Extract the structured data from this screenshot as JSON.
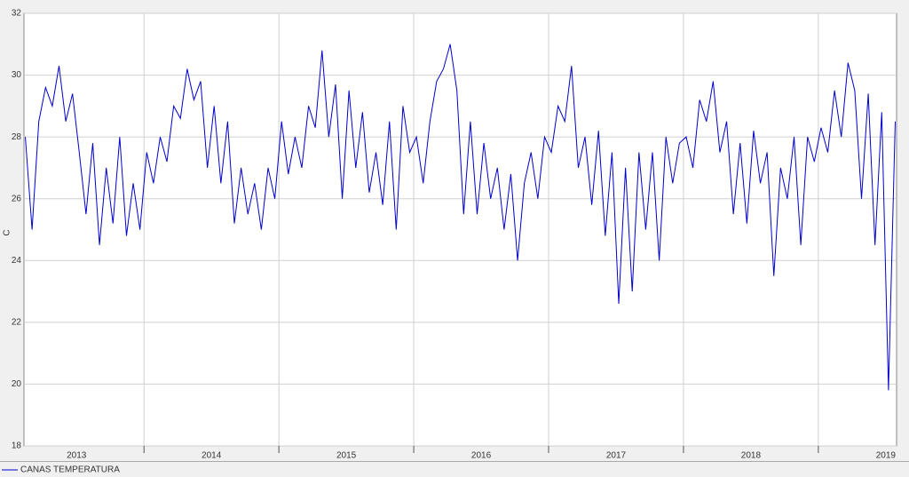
{
  "chart_data": {
    "type": "line",
    "y_label": "C",
    "xlim": [
      2013.11,
      2019.58
    ],
    "xticks": [
      2014,
      2015,
      2016,
      2017,
      2018,
      2019
    ],
    "xlabels": [
      {
        "value": 2013.5,
        "label": "2013"
      },
      {
        "value": 2014.5,
        "label": "2014"
      },
      {
        "value": 2015.5,
        "label": "2015"
      },
      {
        "value": 2016.5,
        "label": "2016"
      },
      {
        "value": 2017.5,
        "label": "2017"
      },
      {
        "value": 2018.5,
        "label": "2018"
      },
      {
        "value": 2019.5,
        "label": "2019"
      }
    ],
    "ylim": [
      18,
      32
    ],
    "yticks": [
      18,
      20,
      22,
      24,
      26,
      28,
      30,
      32
    ],
    "grid": true,
    "legend": "bottom",
    "x": [
      2013.12,
      2013.17,
      2013.22,
      2013.27,
      2013.32,
      2013.37,
      2013.42,
      2013.47,
      2013.52,
      2013.57,
      2013.62,
      2013.67,
      2013.72,
      2013.77,
      2013.82,
      2013.87,
      2013.92,
      2013.97,
      2014.02,
      2014.07,
      2014.12,
      2014.17,
      2014.22,
      2014.27,
      2014.32,
      2014.37,
      2014.42,
      2014.47,
      2014.52,
      2014.57,
      2014.62,
      2014.67,
      2014.72,
      2014.77,
      2014.82,
      2014.87,
      2014.92,
      2014.97,
      2015.02,
      2015.07,
      2015.12,
      2015.17,
      2015.22,
      2015.27,
      2015.32,
      2015.37,
      2015.42,
      2015.47,
      2015.52,
      2015.57,
      2015.62,
      2015.67,
      2015.72,
      2015.77,
      2015.82,
      2015.87,
      2015.92,
      2015.97,
      2016.02,
      2016.07,
      2016.12,
      2016.17,
      2016.22,
      2016.27,
      2016.32,
      2016.37,
      2016.42,
      2016.47,
      2016.52,
      2016.57,
      2016.62,
      2016.67,
      2016.72,
      2016.77,
      2016.82,
      2016.87,
      2016.92,
      2016.97,
      2017.02,
      2017.07,
      2017.12,
      2017.17,
      2017.22,
      2017.27,
      2017.32,
      2017.37,
      2017.42,
      2017.47,
      2017.52,
      2017.57,
      2017.62,
      2017.67,
      2017.72,
      2017.77,
      2017.82,
      2017.87,
      2017.92,
      2017.97,
      2018.02,
      2018.07,
      2018.12,
      2018.17,
      2018.22,
      2018.27,
      2018.32,
      2018.37,
      2018.42,
      2018.47,
      2018.52,
      2018.57,
      2018.62,
      2018.67,
      2018.72,
      2018.77,
      2018.82,
      2018.87,
      2018.92,
      2018.97,
      2019.02,
      2019.07,
      2019.12,
      2019.17,
      2019.22,
      2019.27,
      2019.32,
      2019.37,
      2019.42,
      2019.47,
      2019.52,
      2019.57
    ],
    "series": [
      {
        "name": "CANAS  TEMPERATURA",
        "color": "#0000cc",
        "values": [
          28.0,
          25.0,
          28.5,
          29.6,
          29.0,
          30.3,
          28.5,
          29.4,
          27.5,
          25.5,
          27.8,
          24.5,
          27.0,
          25.2,
          28.0,
          24.8,
          26.5,
          25.0,
          27.5,
          26.5,
          28.0,
          27.2,
          29.0,
          28.6,
          30.2,
          29.2,
          29.8,
          27.0,
          29.0,
          26.5,
          28.5,
          25.2,
          27.0,
          25.5,
          26.5,
          25.0,
          27.0,
          26.0,
          28.5,
          26.8,
          28.0,
          27.0,
          29.0,
          28.3,
          30.8,
          28.0,
          29.7,
          26.0,
          29.5,
          27.0,
          28.8,
          26.2,
          27.5,
          25.8,
          28.5,
          25.0,
          29.0,
          27.5,
          28.0,
          26.5,
          28.5,
          29.8,
          30.2,
          31.0,
          29.5,
          25.5,
          28.5,
          25.5,
          27.8,
          26.0,
          27.0,
          25.0,
          26.8,
          24.0,
          26.5,
          27.5,
          26.0,
          28.0,
          27.5,
          29.0,
          28.5,
          30.3,
          27.0,
          28.0,
          25.8,
          28.2,
          24.8,
          27.5,
          22.6,
          27.0,
          23.0,
          27.5,
          25.0,
          27.5,
          24.0,
          28.0,
          26.5,
          27.8,
          28.0,
          27.0,
          29.2,
          28.5,
          29.8,
          27.5,
          28.5,
          25.5,
          27.8,
          25.2,
          28.2,
          26.5,
          27.5,
          23.5,
          27.0,
          26.0,
          28.0,
          24.5,
          28.0,
          27.2,
          28.3,
          27.5,
          29.5,
          28.0,
          30.4,
          29.5,
          26.0,
          29.4,
          24.5,
          28.8,
          19.8,
          28.5
        ]
      }
    ]
  }
}
